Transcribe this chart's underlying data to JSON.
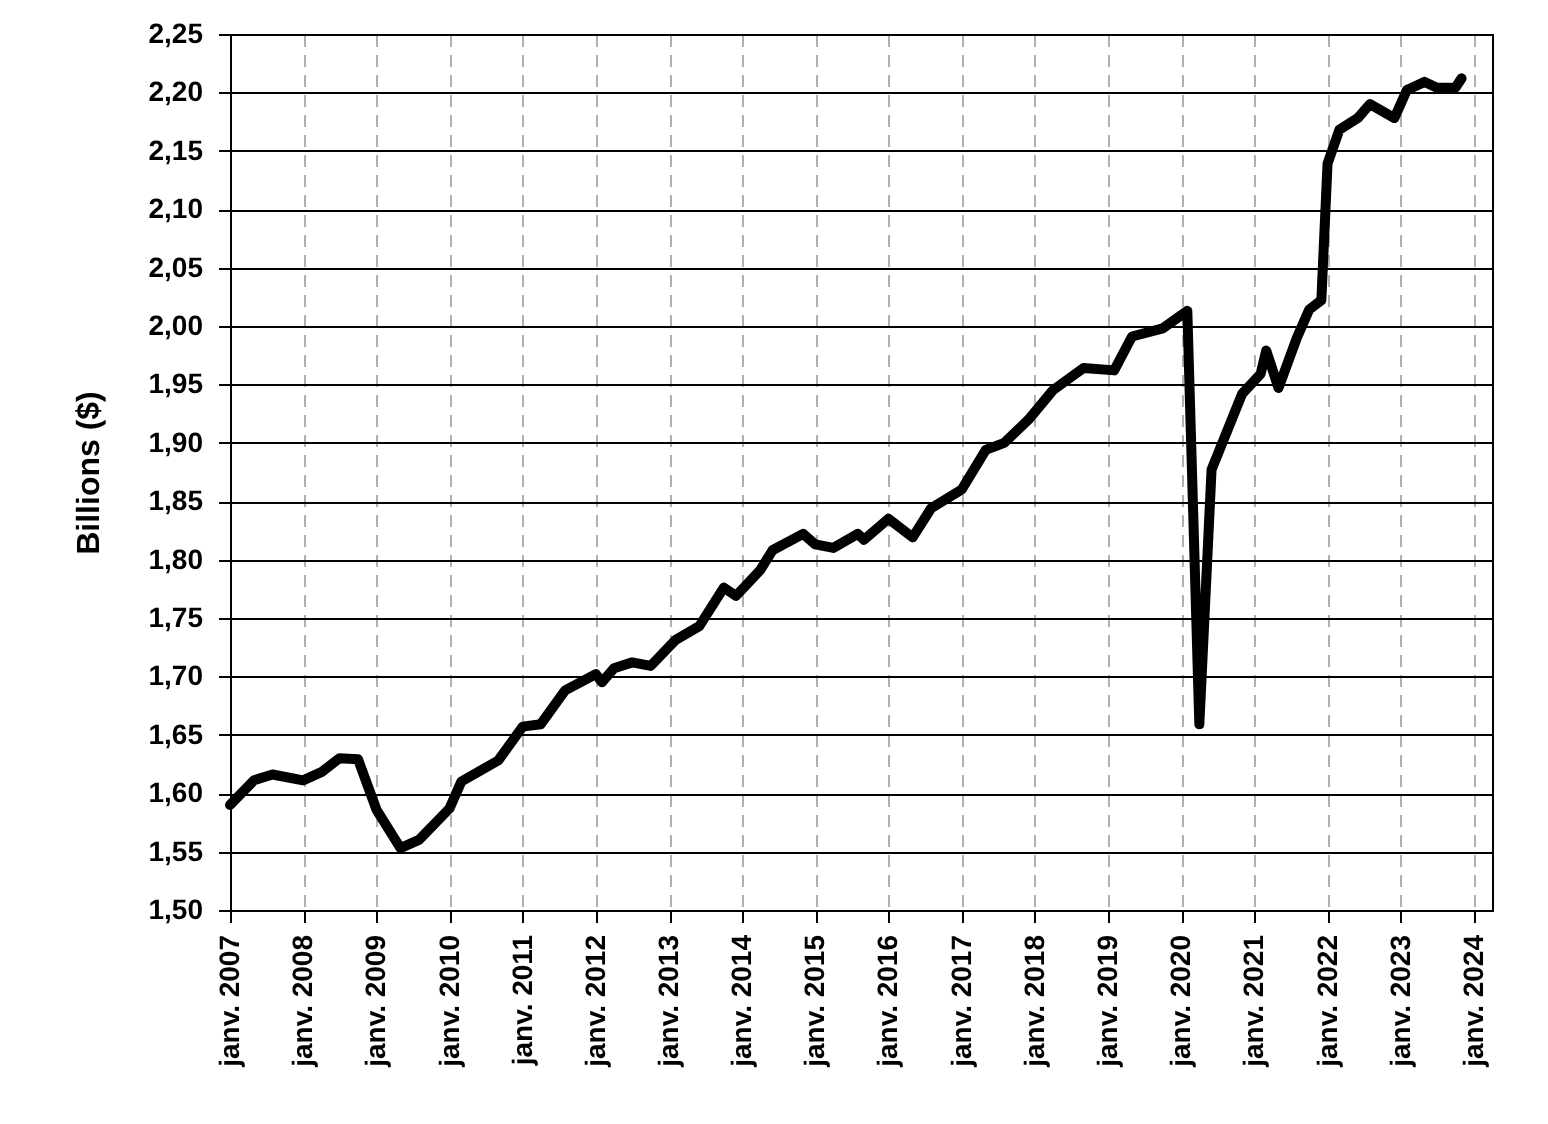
{
  "chart_data": {
    "type": "line",
    "ylabel": "Billions  ($)",
    "x": [
      "2007-01",
      "2007-05",
      "2007-08",
      "2008-01",
      "2008-04",
      "2008-07",
      "2008-10",
      "2009-01",
      "2009-05",
      "2009-08",
      "2010-01",
      "2010-03",
      "2010-09",
      "2011-01",
      "2011-04",
      "2011-08",
      "2012-01",
      "2012-02",
      "2012-04",
      "2012-07",
      "2012-10",
      "2013-02",
      "2013-06",
      "2013-10",
      "2013-12",
      "2014-04",
      "2014-06",
      "2014-11",
      "2015-01",
      "2015-04",
      "2015-08",
      "2015-09",
      "2016-01",
      "2016-05",
      "2016-08",
      "2017-01",
      "2017-05",
      "2017-08",
      "2017-12",
      "2018-04",
      "2018-09",
      "2019-02",
      "2019-05",
      "2019-10",
      "2020-02",
      "2020-04",
      "2020-06",
      "2020-11",
      "2021-02",
      "2021-03",
      "2021-05",
      "2021-08",
      "2021-10",
      "2021-12",
      "2022-01",
      "2022-03",
      "2022-06",
      "2022-08",
      "2022-12",
      "2023-02",
      "2023-05",
      "2023-07",
      "2023-10",
      "2023-11"
    ],
    "series": [
      {
        "color": "#000000",
        "values": [
          1.59,
          1.611,
          1.616,
          1.611,
          1.618,
          1.63,
          1.629,
          1.586,
          1.553,
          1.56,
          1.587,
          1.61,
          1.628,
          1.657,
          1.659,
          1.688,
          1.702,
          1.695,
          1.707,
          1.712,
          1.709,
          1.731,
          1.743,
          1.776,
          1.769,
          1.791,
          1.808,
          1.822,
          1.813,
          1.81,
          1.822,
          1.817,
          1.835,
          1.819,
          1.844,
          1.86,
          1.894,
          1.9,
          1.92,
          1.945,
          1.964,
          1.962,
          1.991,
          1.998,
          2.013,
          1.659,
          1.877,
          1.942,
          1.959,
          1.979,
          1.947,
          1.99,
          2.014,
          2.022,
          2.139,
          2.168,
          2.178,
          2.19,
          2.178,
          2.202,
          2.209,
          2.204,
          2.204,
          2.212
        ]
      }
    ],
    "xlim": [
      "2007-01-01",
      "2024-04-01"
    ],
    "xticks": [
      {
        "value": "2007-01",
        "label": "janv. 2007"
      },
      {
        "value": "2008-01",
        "label": "janv. 2008"
      },
      {
        "value": "2009-01",
        "label": "janv. 2009"
      },
      {
        "value": "2010-01",
        "label": "janv. 2010"
      },
      {
        "value": "2011-01",
        "label": "janv. 2011"
      },
      {
        "value": "2012-01",
        "label": "janv. 2012"
      },
      {
        "value": "2013-01",
        "label": "janv. 2013"
      },
      {
        "value": "2014-01",
        "label": "janv. 2014"
      },
      {
        "value": "2015-01",
        "label": "janv. 2015"
      },
      {
        "value": "2016-01",
        "label": "janv. 2016"
      },
      {
        "value": "2017-01",
        "label": "janv. 2017"
      },
      {
        "value": "2018-01",
        "label": "janv. 2018"
      },
      {
        "value": "2019-01",
        "label": "janv. 2019"
      },
      {
        "value": "2020-01",
        "label": "janv. 2020"
      },
      {
        "value": "2021-01",
        "label": "janv. 2021"
      },
      {
        "value": "2022-01",
        "label": "janv. 2022"
      },
      {
        "value": "2023-01",
        "label": "janv. 2023"
      },
      {
        "value": "2024-01",
        "label": "janv. 2024"
      }
    ],
    "ylim": [
      1.5,
      2.25
    ],
    "yticks": [
      {
        "value": 1.5,
        "label": "1,50"
      },
      {
        "value": 1.55,
        "label": "1,55"
      },
      {
        "value": 1.6,
        "label": "1,60"
      },
      {
        "value": 1.65,
        "label": "1,65"
      },
      {
        "value": 1.7,
        "label": "1,70"
      },
      {
        "value": 1.75,
        "label": "1,75"
      },
      {
        "value": 1.8,
        "label": "1,80"
      },
      {
        "value": 1.85,
        "label": "1,85"
      },
      {
        "value": 1.9,
        "label": "1,90"
      },
      {
        "value": 1.95,
        "label": "1,95"
      },
      {
        "value": 2.0,
        "label": "2,00"
      },
      {
        "value": 2.05,
        "label": "2,05"
      },
      {
        "value": 2.1,
        "label": "2,10"
      },
      {
        "value": 2.15,
        "label": "2,15"
      },
      {
        "value": 2.2,
        "label": "2,20"
      },
      {
        "value": 2.25,
        "label": "2,25"
      }
    ],
    "grid": true,
    "line_style": "solid",
    "marker": "none"
  }
}
